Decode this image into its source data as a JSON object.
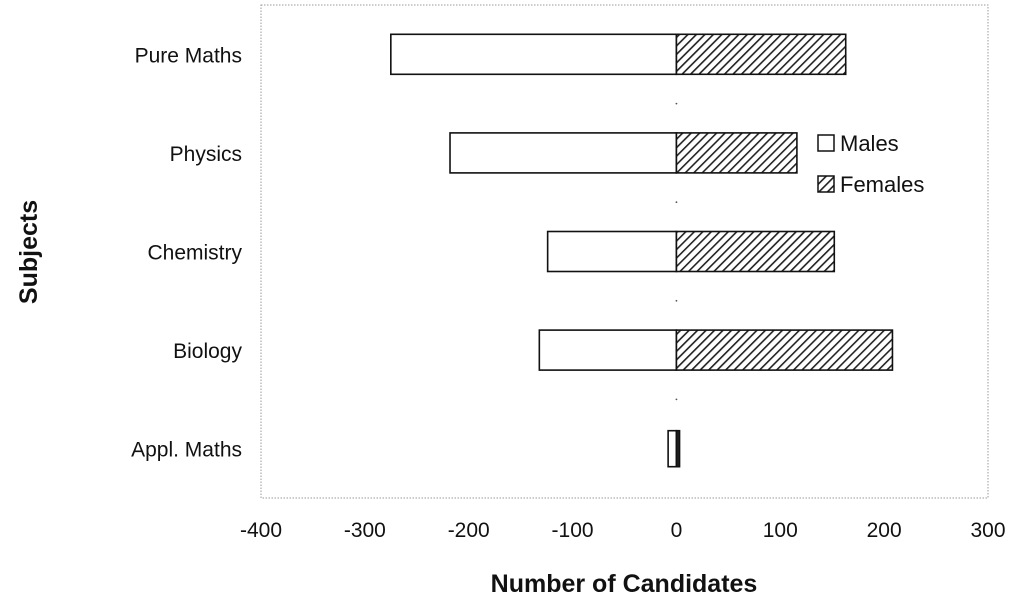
{
  "chart_data": {
    "type": "bar",
    "orientation": "horizontal",
    "stacking": "diverging",
    "categories": [
      "Pure Maths",
      "Physics",
      "Chemistry",
      "Biology",
      "Appl. Maths"
    ],
    "series": [
      {
        "name": "Males",
        "values": [
          -275,
          -218,
          -124,
          -132,
          -8
        ],
        "color": "#ffffff",
        "pattern": "none"
      },
      {
        "name": "Females",
        "values": [
          163,
          116,
          152,
          208,
          3
        ],
        "color": "#222222",
        "pattern": "diagonal-hatch"
      }
    ],
    "xlabel": "Number of Candidates",
    "ylabel": "Subjects",
    "xlim": [
      -400,
      300
    ],
    "xticks": [
      "-400",
      "-300",
      "-200",
      "-100",
      "0",
      "100",
      "200",
      "300"
    ],
    "grid": false,
    "legend_position": "right"
  }
}
